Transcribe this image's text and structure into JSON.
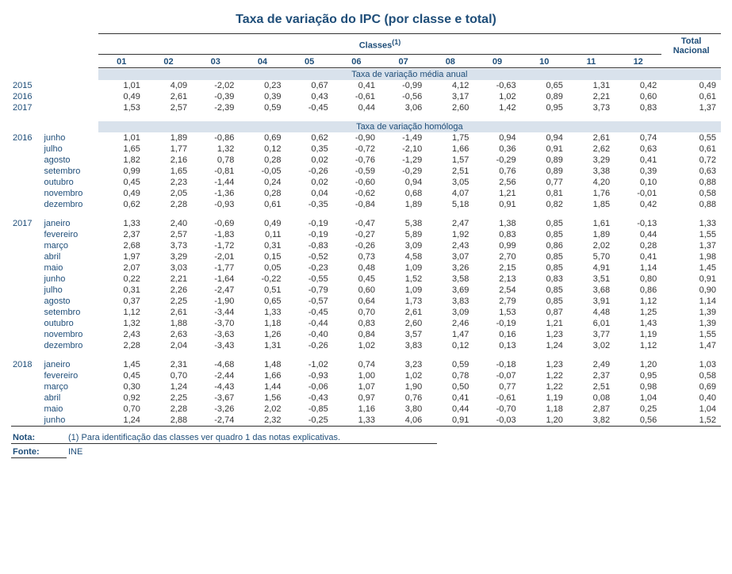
{
  "title": "Taxa de variação do IPC (por classe e total)",
  "header": {
    "classes_label": "Classes",
    "classes_sup": "(1)",
    "total_label_line1": "Total",
    "total_label_line2": "Nacional",
    "cols": [
      "01",
      "02",
      "03",
      "04",
      "05",
      "06",
      "07",
      "08",
      "09",
      "10",
      "11",
      "12"
    ]
  },
  "section1": {
    "band": "Taxa de variação média anual",
    "rows": [
      {
        "year": "2015",
        "month": "",
        "v": [
          "1,01",
          "4,09",
          "-2,02",
          "0,23",
          "0,67",
          "0,41",
          "-0,99",
          "4,12",
          "-0,63",
          "0,65",
          "1,31",
          "0,42",
          "0,49"
        ]
      },
      {
        "year": "2016",
        "month": "",
        "v": [
          "0,49",
          "2,61",
          "-0,39",
          "0,39",
          "0,43",
          "-0,61",
          "-0,56",
          "3,17",
          "1,02",
          "0,89",
          "2,21",
          "0,60",
          "0,61"
        ]
      },
      {
        "year": "2017",
        "month": "",
        "v": [
          "1,53",
          "2,57",
          "-2,39",
          "0,59",
          "-0,45",
          "0,44",
          "3,06",
          "2,60",
          "1,42",
          "0,95",
          "3,73",
          "0,83",
          "1,37"
        ]
      }
    ]
  },
  "section2": {
    "band": "Taxa de variação homóloga",
    "groups": [
      {
        "rows": [
          {
            "year": "2016",
            "month": "junho",
            "v": [
              "1,01",
              "1,89",
              "-0,86",
              "0,69",
              "0,62",
              "-0,90",
              "-1,49",
              "1,75",
              "0,94",
              "0,94",
              "2,61",
              "0,74",
              "0,55"
            ]
          },
          {
            "year": "",
            "month": "julho",
            "v": [
              "1,65",
              "1,77",
              "1,32",
              "0,12",
              "0,35",
              "-0,72",
              "-2,10",
              "1,66",
              "0,36",
              "0,91",
              "2,62",
              "0,63",
              "0,61"
            ]
          },
          {
            "year": "",
            "month": "agosto",
            "v": [
              "1,82",
              "2,16",
              "0,78",
              "0,28",
              "0,02",
              "-0,76",
              "-1,29",
              "1,57",
              "-0,29",
              "0,89",
              "3,29",
              "0,41",
              "0,72"
            ]
          },
          {
            "year": "",
            "month": "setembro",
            "v": [
              "0,99",
              "1,65",
              "-0,81",
              "-0,05",
              "-0,26",
              "-0,59",
              "-0,29",
              "2,51",
              "0,76",
              "0,89",
              "3,38",
              "0,39",
              "0,63"
            ]
          },
          {
            "year": "",
            "month": "outubro",
            "v": [
              "0,45",
              "2,23",
              "-1,44",
              "0,24",
              "0,02",
              "-0,60",
              "0,94",
              "3,05",
              "2,56",
              "0,77",
              "4,20",
              "0,10",
              "0,88"
            ]
          },
          {
            "year": "",
            "month": "novembro",
            "v": [
              "0,49",
              "2,05",
              "-1,36",
              "0,28",
              "0,04",
              "-0,62",
              "0,68",
              "4,07",
              "1,21",
              "0,81",
              "1,76",
              "-0,01",
              "0,58"
            ]
          },
          {
            "year": "",
            "month": "dezembro",
            "v": [
              "0,62",
              "2,28",
              "-0,93",
              "0,61",
              "-0,35",
              "-0,84",
              "1,89",
              "5,18",
              "0,91",
              "0,82",
              "1,85",
              "0,42",
              "0,88"
            ]
          }
        ]
      },
      {
        "rows": [
          {
            "year": "2017",
            "month": "janeiro",
            "v": [
              "1,33",
              "2,40",
              "-0,69",
              "0,49",
              "-0,19",
              "-0,47",
              "5,38",
              "2,47",
              "1,38",
              "0,85",
              "1,61",
              "-0,13",
              "1,33"
            ]
          },
          {
            "year": "",
            "month": "fevereiro",
            "v": [
              "2,37",
              "2,57",
              "-1,83",
              "0,11",
              "-0,19",
              "-0,27",
              "5,89",
              "1,92",
              "0,83",
              "0,85",
              "1,89",
              "0,44",
              "1,55"
            ]
          },
          {
            "year": "",
            "month": "março",
            "v": [
              "2,68",
              "3,73",
              "-1,72",
              "0,31",
              "-0,83",
              "-0,26",
              "3,09",
              "2,43",
              "0,99",
              "0,86",
              "2,02",
              "0,28",
              "1,37"
            ]
          },
          {
            "year": "",
            "month": "abril",
            "v": [
              "1,97",
              "3,29",
              "-2,01",
              "0,15",
              "-0,52",
              "0,73",
              "4,58",
              "3,07",
              "2,70",
              "0,85",
              "5,70",
              "0,41",
              "1,98"
            ]
          },
          {
            "year": "",
            "month": "maio",
            "v": [
              "2,07",
              "3,03",
              "-1,77",
              "0,05",
              "-0,23",
              "0,48",
              "1,09",
              "3,26",
              "2,15",
              "0,85",
              "4,91",
              "1,14",
              "1,45"
            ]
          },
          {
            "year": "",
            "month": "junho",
            "v": [
              "0,22",
              "2,21",
              "-1,64",
              "-0,22",
              "-0,55",
              "0,45",
              "1,52",
              "3,58",
              "2,13",
              "0,83",
              "3,51",
              "0,80",
              "0,91"
            ]
          },
          {
            "year": "",
            "month": "julho",
            "v": [
              "0,31",
              "2,26",
              "-2,47",
              "0,51",
              "-0,79",
              "0,60",
              "1,09",
              "3,69",
              "2,54",
              "0,85",
              "3,68",
              "0,86",
              "0,90"
            ]
          },
          {
            "year": "",
            "month": "agosto",
            "v": [
              "0,37",
              "2,25",
              "-1,90",
              "0,65",
              "-0,57",
              "0,64",
              "1,73",
              "3,83",
              "2,79",
              "0,85",
              "3,91",
              "1,12",
              "1,14"
            ]
          },
          {
            "year": "",
            "month": "setembro",
            "v": [
              "1,12",
              "2,61",
              "-3,44",
              "1,33",
              "-0,45",
              "0,70",
              "2,61",
              "3,09",
              "1,53",
              "0,87",
              "4,48",
              "1,25",
              "1,39"
            ]
          },
          {
            "year": "",
            "month": "outubro",
            "v": [
              "1,32",
              "1,88",
              "-3,70",
              "1,18",
              "-0,44",
              "0,83",
              "2,60",
              "2,46",
              "-0,19",
              "1,21",
              "6,01",
              "1,43",
              "1,39"
            ]
          },
          {
            "year": "",
            "month": "novembro",
            "v": [
              "2,43",
              "2,63",
              "-3,63",
              "1,26",
              "-0,40",
              "0,84",
              "3,57",
              "1,47",
              "0,16",
              "1,23",
              "3,77",
              "1,19",
              "1,55"
            ]
          },
          {
            "year": "",
            "month": "dezembro",
            "v": [
              "2,28",
              "2,04",
              "-3,43",
              "1,31",
              "-0,26",
              "1,02",
              "3,83",
              "0,12",
              "0,13",
              "1,24",
              "3,02",
              "1,12",
              "1,47"
            ]
          }
        ]
      },
      {
        "rows": [
          {
            "year": "2018",
            "month": "janeiro",
            "v": [
              "1,45",
              "2,31",
              "-4,68",
              "1,48",
              "-1,02",
              "0,74",
              "3,23",
              "0,59",
              "-0,18",
              "1,23",
              "2,49",
              "1,20",
              "1,03"
            ]
          },
          {
            "year": "",
            "month": "fevereiro",
            "v": [
              "0,45",
              "0,70",
              "-2,44",
              "1,66",
              "-0,93",
              "1,00",
              "1,02",
              "0,78",
              "-0,07",
              "1,22",
              "2,37",
              "0,95",
              "0,58"
            ]
          },
          {
            "year": "",
            "month": "março",
            "v": [
              "0,30",
              "1,24",
              "-4,43",
              "1,44",
              "-0,06",
              "1,07",
              "1,90",
              "0,50",
              "0,77",
              "1,22",
              "2,51",
              "0,98",
              "0,69"
            ]
          },
          {
            "year": "",
            "month": "abril",
            "v": [
              "0,92",
              "2,25",
              "-3,67",
              "1,56",
              "-0,43",
              "0,97",
              "0,76",
              "0,41",
              "-0,61",
              "1,19",
              "0,08",
              "1,04",
              "0,40"
            ]
          },
          {
            "year": "",
            "month": "maio",
            "v": [
              "0,70",
              "2,28",
              "-3,26",
              "2,02",
              "-0,85",
              "1,16",
              "3,80",
              "0,44",
              "-0,70",
              "1,18",
              "2,87",
              "0,25",
              "1,04"
            ]
          },
          {
            "year": "",
            "month": "junho",
            "v": [
              "1,24",
              "2,88",
              "-2,74",
              "2,32",
              "-0,25",
              "1,33",
              "4,06",
              "0,91",
              "-0,03",
              "1,20",
              "3,82",
              "0,56",
              "1,52"
            ]
          }
        ]
      }
    ]
  },
  "footer": {
    "nota_key": "Nota:",
    "nota_val": "(1) Para identificação das classes ver quadro 1 das notas explicativas.",
    "fonte_key": "Fonte:",
    "fonte_val": "INE"
  }
}
